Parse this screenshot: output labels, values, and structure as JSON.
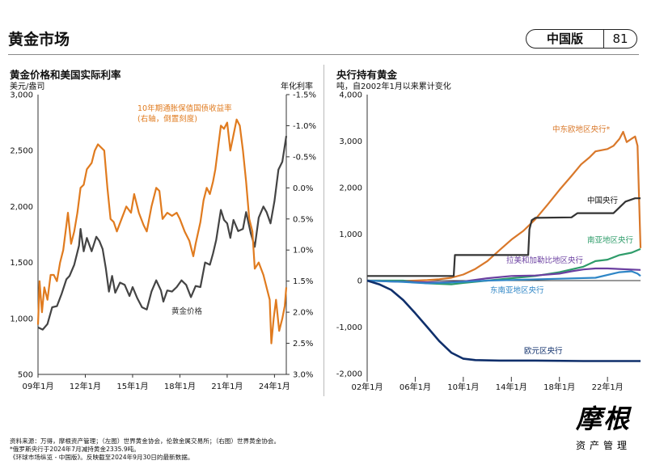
{
  "header": {
    "title": "黄金市场",
    "edition": "中国版",
    "page_number": "81"
  },
  "chart_data": [
    {
      "type": "line",
      "title": "黄金价格和美国实际利率",
      "ylabel_left": "美元/盎司",
      "ylabel_right": "年化利率",
      "left_axis": {
        "ticks": [
          "3,000",
          "2,500",
          "2,000",
          "1,500",
          "1,000",
          "500"
        ],
        "range": [
          500,
          3000
        ]
      },
      "right_axis": {
        "ticks": [
          "-1.5%",
          "-1.0%",
          "-0.5%",
          "0.0%",
          "0.5%",
          "1.0%",
          "1.5%",
          "2.0%",
          "2.5%",
          "3.0%"
        ],
        "range": [
          -1.5,
          3.0
        ],
        "inverted": true
      },
      "x_ticks": [
        "09年1月",
        "12年1月",
        "15年1月",
        "18年1月",
        "21年1月",
        "24年1月"
      ],
      "x_tick_years": [
        2009,
        2012,
        2015,
        2018,
        2021,
        2024
      ],
      "x_range": [
        2009.0,
        2024.75
      ],
      "series": [
        {
          "name": "黄金价格",
          "axis": "left",
          "color": "#444444",
          "points": [
            [
              2009.0,
              920
            ],
            [
              2009.3,
              900
            ],
            [
              2009.6,
              950
            ],
            [
              2009.9,
              1100
            ],
            [
              2010.2,
              1110
            ],
            [
              2010.5,
              1220
            ],
            [
              2010.8,
              1350
            ],
            [
              2011.0,
              1380
            ],
            [
              2011.3,
              1480
            ],
            [
              2011.6,
              1650
            ],
            [
              2011.7,
              1800
            ],
            [
              2011.9,
              1600
            ],
            [
              2012.1,
              1720
            ],
            [
              2012.4,
              1600
            ],
            [
              2012.7,
              1730
            ],
            [
              2012.9,
              1690
            ],
            [
              2013.1,
              1620
            ],
            [
              2013.3,
              1450
            ],
            [
              2013.5,
              1240
            ],
            [
              2013.7,
              1380
            ],
            [
              2013.9,
              1230
            ],
            [
              2014.2,
              1320
            ],
            [
              2014.5,
              1300
            ],
            [
              2014.8,
              1200
            ],
            [
              2015.0,
              1280
            ],
            [
              2015.3,
              1180
            ],
            [
              2015.6,
              1100
            ],
            [
              2015.9,
              1080
            ],
            [
              2016.2,
              1240
            ],
            [
              2016.5,
              1340
            ],
            [
              2016.8,
              1250
            ],
            [
              2016.95,
              1150
            ],
            [
              2017.2,
              1250
            ],
            [
              2017.5,
              1240
            ],
            [
              2017.8,
              1280
            ],
            [
              2018.1,
              1340
            ],
            [
              2018.4,
              1300
            ],
            [
              2018.7,
              1190
            ],
            [
              2019.0,
              1290
            ],
            [
              2019.3,
              1280
            ],
            [
              2019.6,
              1500
            ],
            [
              2019.9,
              1480
            ],
            [
              2020.1,
              1580
            ],
            [
              2020.3,
              1700
            ],
            [
              2020.6,
              1970
            ],
            [
              2020.8,
              1880
            ],
            [
              2021.0,
              1850
            ],
            [
              2021.2,
              1720
            ],
            [
              2021.4,
              1880
            ],
            [
              2021.7,
              1780
            ],
            [
              2022.0,
              1800
            ],
            [
              2022.2,
              1950
            ],
            [
              2022.5,
              1760
            ],
            [
              2022.75,
              1640
            ],
            [
              2023.0,
              1900
            ],
            [
              2023.3,
              2000
            ],
            [
              2023.5,
              1950
            ],
            [
              2023.75,
              1850
            ],
            [
              2024.0,
              2050
            ],
            [
              2024.25,
              2330
            ],
            [
              2024.5,
              2400
            ],
            [
              2024.75,
              2630
            ]
          ]
        },
        {
          "name": "10年期通胀保值国债收益率",
          "axis": "right",
          "color": "#E07B1F",
          "points": [
            [
              2009.0,
              2.2
            ],
            [
              2009.1,
              1.5
            ],
            [
              2009.25,
              2.0
            ],
            [
              2009.4,
              1.6
            ],
            [
              2009.6,
              1.8
            ],
            [
              2009.8,
              1.4
            ],
            [
              2010.0,
              1.4
            ],
            [
              2010.2,
              1.5
            ],
            [
              2010.4,
              1.2
            ],
            [
              2010.6,
              1.0
            ],
            [
              2010.8,
              0.6
            ],
            [
              2010.9,
              0.4
            ],
            [
              2011.1,
              0.9
            ],
            [
              2011.3,
              0.7
            ],
            [
              2011.5,
              0.4
            ],
            [
              2011.7,
              0.0
            ],
            [
              2011.9,
              -0.05
            ],
            [
              2012.1,
              -0.3
            ],
            [
              2012.4,
              -0.4
            ],
            [
              2012.6,
              -0.6
            ],
            [
              2012.8,
              -0.7
            ],
            [
              2013.0,
              -0.65
            ],
            [
              2013.2,
              -0.6
            ],
            [
              2013.4,
              0.0
            ],
            [
              2013.6,
              0.5
            ],
            [
              2013.8,
              0.55
            ],
            [
              2014.0,
              0.7
            ],
            [
              2014.3,
              0.5
            ],
            [
              2014.6,
              0.3
            ],
            [
              2014.9,
              0.4
            ],
            [
              2015.1,
              0.1
            ],
            [
              2015.4,
              0.4
            ],
            [
              2015.7,
              0.6
            ],
            [
              2015.9,
              0.7
            ],
            [
              2016.2,
              0.3
            ],
            [
              2016.5,
              0.0
            ],
            [
              2016.7,
              0.05
            ],
            [
              2016.9,
              0.5
            ],
            [
              2017.2,
              0.4
            ],
            [
              2017.5,
              0.45
            ],
            [
              2017.8,
              0.4
            ],
            [
              2018.0,
              0.5
            ],
            [
              2018.3,
              0.7
            ],
            [
              2018.6,
              0.85
            ],
            [
              2018.85,
              1.1
            ],
            [
              2019.0,
              0.9
            ],
            [
              2019.3,
              0.55
            ],
            [
              2019.5,
              0.2
            ],
            [
              2019.7,
              0.0
            ],
            [
              2019.9,
              0.1
            ],
            [
              2020.1,
              -0.1
            ],
            [
              2020.25,
              -0.3
            ],
            [
              2020.4,
              -0.6
            ],
            [
              2020.6,
              -1.0
            ],
            [
              2020.8,
              -0.95
            ],
            [
              2021.0,
              -1.05
            ],
            [
              2021.2,
              -0.6
            ],
            [
              2021.4,
              -0.85
            ],
            [
              2021.6,
              -1.1
            ],
            [
              2021.8,
              -1.0
            ],
            [
              2022.0,
              -0.6
            ],
            [
              2022.2,
              -0.1
            ],
            [
              2022.4,
              0.5
            ],
            [
              2022.6,
              0.7
            ],
            [
              2022.75,
              1.3
            ],
            [
              2023.0,
              1.2
            ],
            [
              2023.3,
              1.4
            ],
            [
              2023.5,
              1.6
            ],
            [
              2023.7,
              1.8
            ],
            [
              2023.8,
              2.5
            ],
            [
              2023.95,
              2.1
            ],
            [
              2024.1,
              1.8
            ],
            [
              2024.3,
              2.3
            ],
            [
              2024.5,
              2.1
            ],
            [
              2024.65,
              1.9
            ],
            [
              2024.75,
              1.6
            ]
          ]
        }
      ],
      "annotations": [
        {
          "text": "10年期通胀保值国债收益率",
          "color": "#E07B1F"
        },
        {
          "text": "(右轴，倒置刻度)",
          "color": "#E07B1F"
        },
        {
          "text": "黄金价格",
          "color": "#333333"
        }
      ]
    },
    {
      "type": "line",
      "title": "央行持有黄金",
      "subtitle": "吨，自2002年1月以来累计变化",
      "y_axis": {
        "ticks": [
          "4,000",
          "3,000",
          "2,000",
          "1,000",
          "0",
          "-1,000",
          "-2,000"
        ],
        "range": [
          -2000,
          4000
        ]
      },
      "x_ticks": [
        "02年1月",
        "06年1月",
        "10年1月",
        "14年1月",
        "18年1月",
        "22年1月"
      ],
      "x_tick_years": [
        2002,
        2006,
        2010,
        2014,
        2018,
        2022
      ],
      "x_range": [
        2002.0,
        2024.75
      ],
      "series": [
        {
          "name": "中东欧地区央行*",
          "color": "#D9782A",
          "points": [
            [
              2002.0,
              0
            ],
            [
              2003.0,
              0
            ],
            [
              2004.0,
              -10
            ],
            [
              2005.0,
              -5
            ],
            [
              2006.0,
              0
            ],
            [
              2007.0,
              10
            ],
            [
              2008.0,
              30
            ],
            [
              2009.0,
              60
            ],
            [
              2010.0,
              130
            ],
            [
              2011.0,
              250
            ],
            [
              2012.0,
              420
            ],
            [
              2013.0,
              650
            ],
            [
              2014.0,
              880
            ],
            [
              2015.0,
              1070
            ],
            [
              2016.0,
              1320
            ],
            [
              2017.0,
              1630
            ],
            [
              2018.0,
              1950
            ],
            [
              2019.0,
              2250
            ],
            [
              2019.8,
              2500
            ],
            [
              2020.5,
              2650
            ],
            [
              2021.0,
              2780
            ],
            [
              2022.0,
              2830
            ],
            [
              2022.5,
              2900
            ],
            [
              2023.0,
              3050
            ],
            [
              2023.3,
              3200
            ],
            [
              2023.6,
              2980
            ],
            [
              2024.0,
              3050
            ],
            [
              2024.3,
              3100
            ],
            [
              2024.5,
              2900
            ],
            [
              2024.75,
              700
            ]
          ]
        },
        {
          "name": "中国央行",
          "color": "#333333",
          "points": [
            [
              2002.0,
              100
            ],
            [
              2009.2,
              100
            ],
            [
              2009.3,
              550
            ],
            [
              2015.4,
              550
            ],
            [
              2015.5,
              1100
            ],
            [
              2015.7,
              1300
            ],
            [
              2016.0,
              1350
            ],
            [
              2019.0,
              1360
            ],
            [
              2019.5,
              1450
            ],
            [
              2022.5,
              1450
            ],
            [
              2022.9,
              1550
            ],
            [
              2023.5,
              1700
            ],
            [
              2024.3,
              1770
            ],
            [
              2024.75,
              1770
            ]
          ]
        },
        {
          "name": "南亚地区央行",
          "color": "#2E9C6A",
          "points": [
            [
              2002.0,
              0
            ],
            [
              2005.0,
              0
            ],
            [
              2007.0,
              -60
            ],
            [
              2009.0,
              -80
            ],
            [
              2010.0,
              -50
            ],
            [
              2012.0,
              0
            ],
            [
              2014.0,
              50
            ],
            [
              2016.0,
              100
            ],
            [
              2018.0,
              180
            ],
            [
              2020.0,
              300
            ],
            [
              2021.0,
              420
            ],
            [
              2022.0,
              450
            ],
            [
              2023.0,
              550
            ],
            [
              2024.0,
              600
            ],
            [
              2024.75,
              680
            ]
          ]
        },
        {
          "name": "拉美和加勒比地区央行",
          "color": "#6A3FA0",
          "points": [
            [
              2002.0,
              0
            ],
            [
              2004.0,
              -20
            ],
            [
              2006.0,
              -30
            ],
            [
              2008.0,
              -40
            ],
            [
              2010.0,
              -20
            ],
            [
              2012.0,
              50
            ],
            [
              2014.0,
              100
            ],
            [
              2016.0,
              110
            ],
            [
              2018.0,
              150
            ],
            [
              2019.0,
              200
            ],
            [
              2020.0,
              240
            ],
            [
              2021.0,
              260
            ],
            [
              2022.0,
              260
            ],
            [
              2024.75,
              230
            ]
          ]
        },
        {
          "name": "东南亚地区央行",
          "color": "#2F86C6",
          "points": [
            [
              2002.0,
              0
            ],
            [
              2005.0,
              -30
            ],
            [
              2007.0,
              -60
            ],
            [
              2009.0,
              -40
            ],
            [
              2012.0,
              0
            ],
            [
              2015.0,
              20
            ],
            [
              2018.0,
              40
            ],
            [
              2021.0,
              60
            ],
            [
              2023.0,
              180
            ],
            [
              2024.0,
              200
            ],
            [
              2024.5,
              150
            ],
            [
              2024.75,
              100
            ]
          ]
        },
        {
          "name": "欧元区央行",
          "color": "#0F2F6B",
          "points": [
            [
              2002.0,
              0
            ],
            [
              2003.0,
              -80
            ],
            [
              2004.0,
              -200
            ],
            [
              2005.0,
              -420
            ],
            [
              2006.0,
              -700
            ],
            [
              2007.0,
              -1000
            ],
            [
              2008.0,
              -1300
            ],
            [
              2009.0,
              -1550
            ],
            [
              2010.0,
              -1680
            ],
            [
              2011.0,
              -1710
            ],
            [
              2013.0,
              -1720
            ],
            [
              2016.0,
              -1720
            ],
            [
              2020.0,
              -1730
            ],
            [
              2024.75,
              -1730
            ]
          ]
        }
      ]
    }
  ],
  "footnotes": [
    "资料来源：万得，摩根资产管理；（左图）世界黄金协会，伦敦金属交易所；（右图）世界黄金协会。",
    "*俄罗斯央行于2024年7月减持黄金2335.9吨。",
    "《环球市场纵览 - 中国版》。反映截至2024年9月30日的最新数据。"
  ],
  "logo": {
    "main": "摩根",
    "sub": "资产管理"
  }
}
